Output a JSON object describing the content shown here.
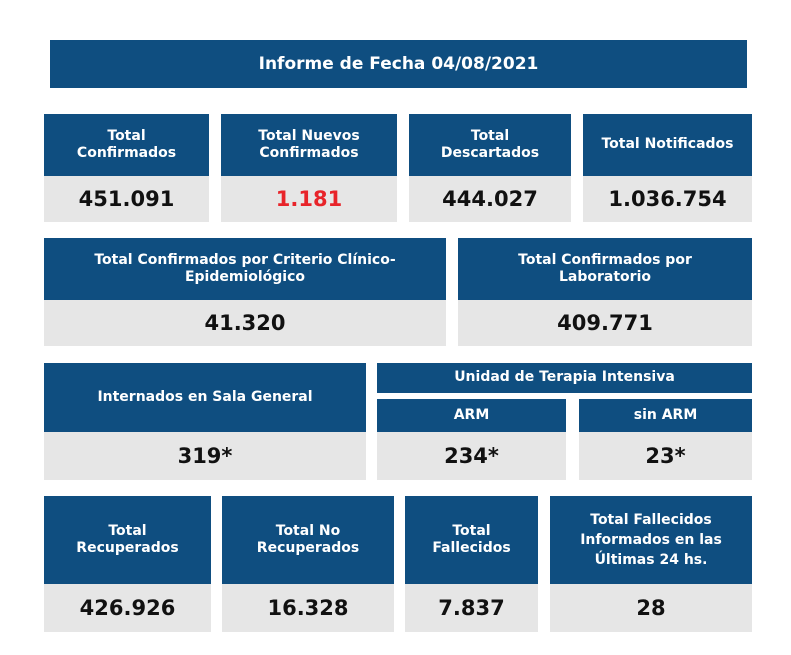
{
  "title": "Informe de Fecha 04/08/2021",
  "row1": [
    {
      "label_l1": "Total",
      "label_l2": "Confirmados",
      "value": "451.091"
    },
    {
      "label_l1": "Total Nuevos",
      "label_l2": "Confirmados",
      "value": "1.181"
    },
    {
      "label_l1": "Total",
      "label_l2": "Descartados",
      "value": "444.027"
    },
    {
      "label_l1": "Total Notificados",
      "label_l2": "",
      "value": "1.036.754"
    }
  ],
  "row2": [
    {
      "label_l1": "Total Confirmados por Criterio Clínico-",
      "label_l2": "Epidemiológico",
      "value": "41.320"
    },
    {
      "label_l1": "Total Confirmados por",
      "label_l2": "Laboratorio",
      "value": "409.771"
    }
  ],
  "row3": {
    "sala_general": {
      "label": "Internados en Sala General",
      "value": "319*"
    },
    "uti_title": "Unidad de Terapia Intensiva",
    "arm": {
      "label": "ARM",
      "value": "234*"
    },
    "sin_arm": {
      "label": "sin ARM",
      "value": "23*"
    }
  },
  "row4": [
    {
      "label_l1": "Total",
      "label_l2": "Recuperados",
      "label_l3": "",
      "value": "426.926"
    },
    {
      "label_l1": "Total No",
      "label_l2": "Recuperados",
      "label_l3": "",
      "value": "16.328"
    },
    {
      "label_l1": "Total",
      "label_l2": "Fallecidos",
      "label_l3": "",
      "value": "7.837"
    },
    {
      "label_l1": "Total Fallecidos",
      "label_l2": "Informados en las",
      "label_l3": "Últimas 24 hs.",
      "value": "28"
    }
  ],
  "colors": {
    "header_blue": "#0f4e80",
    "value_bg": "#e6e6e6",
    "highlight_red": "#e8242a"
  }
}
